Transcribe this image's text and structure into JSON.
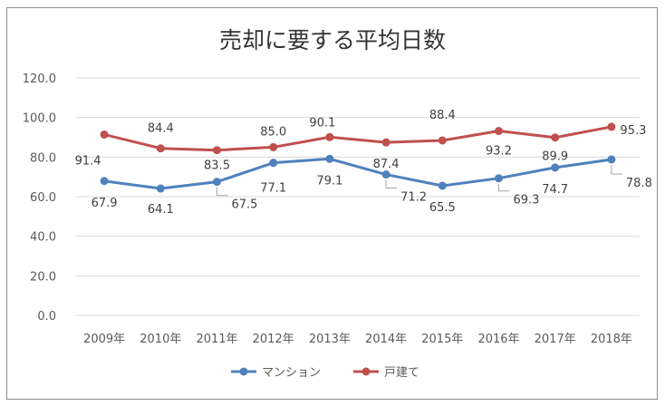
{
  "chart_data": {
    "type": "line",
    "title": "売却に要する平均日数",
    "categories": [
      "2009年",
      "2010年",
      "2011年",
      "2012年",
      "2013年",
      "2014年",
      "2015年",
      "2016年",
      "2017年",
      "2018年"
    ],
    "series": [
      {
        "name": "マンション",
        "color": "#4f81bd",
        "values": [
          67.9,
          64.1,
          67.5,
          77.1,
          79.1,
          71.2,
          65.5,
          69.3,
          74.7,
          78.8
        ],
        "labels": [
          "67.9",
          "64.1",
          "67.5",
          "77.1",
          "79.1",
          "71.2",
          "65.5",
          "69.3",
          "74.7",
          "78.8"
        ]
      },
      {
        "name": "戸建て",
        "color": "#c0504d",
        "values": [
          91.4,
          84.4,
          83.5,
          85.0,
          90.1,
          87.4,
          88.4,
          93.2,
          89.9,
          95.3
        ],
        "labels": [
          "91.4",
          "84.4",
          "83.5",
          "85.0",
          "90.1",
          "87.4",
          "88.4",
          "93.2",
          "89.9",
          "95.3"
        ]
      }
    ],
    "yticks": [
      "0.0",
      "20.0",
      "40.0",
      "60.0",
      "80.0",
      "100.0",
      "120.0"
    ],
    "ylim": [
      0,
      120
    ],
    "grid": true,
    "legend": "bottom",
    "xlabel": "",
    "ylabel": ""
  }
}
